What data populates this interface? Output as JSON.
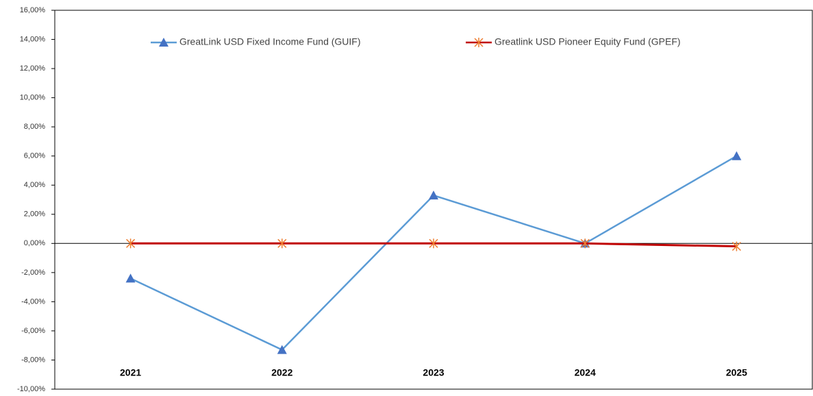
{
  "chart_data": {
    "type": "line",
    "categories": [
      "2021",
      "2022",
      "2023",
      "2024",
      "2025"
    ],
    "series": [
      {
        "name": "GreatLink USD Fixed Income Fund (GUIF)",
        "color": "#5b9bd5",
        "marker_color": "#4472c4",
        "marker": "triangle",
        "values": [
          -2.4,
          -7.3,
          3.3,
          0.0,
          6.0
        ]
      },
      {
        "name": "Greatlink USD Pioneer Equity Fund (GPEF)",
        "color": "#c00000",
        "marker_color": "#ed7d31",
        "marker": "asterisk",
        "values": [
          0.0,
          0.0,
          0.0,
          0.0,
          -0.2
        ]
      }
    ],
    "ylim": [
      -10,
      16
    ],
    "yticks": [
      {
        "value": -10,
        "label": "-10,00%"
      },
      {
        "value": -8,
        "label": "-8,00%"
      },
      {
        "value": -6,
        "label": "-6,00%"
      },
      {
        "value": -4,
        "label": "-4,00%"
      },
      {
        "value": -2,
        "label": "-2,00%"
      },
      {
        "value": 0,
        "label": "0,00%"
      },
      {
        "value": 2,
        "label": "2,00%"
      },
      {
        "value": 4,
        "label": "4,00%"
      },
      {
        "value": 6,
        "label": "6,00%"
      },
      {
        "value": 8,
        "label": "8,00%"
      },
      {
        "value": 10,
        "label": "10,00%"
      },
      {
        "value": 12,
        "label": "12,00%"
      },
      {
        "value": 14,
        "label": "14,00%"
      },
      {
        "value": 16,
        "label": "16,00%"
      }
    ],
    "grid": false,
    "legend": "top"
  }
}
